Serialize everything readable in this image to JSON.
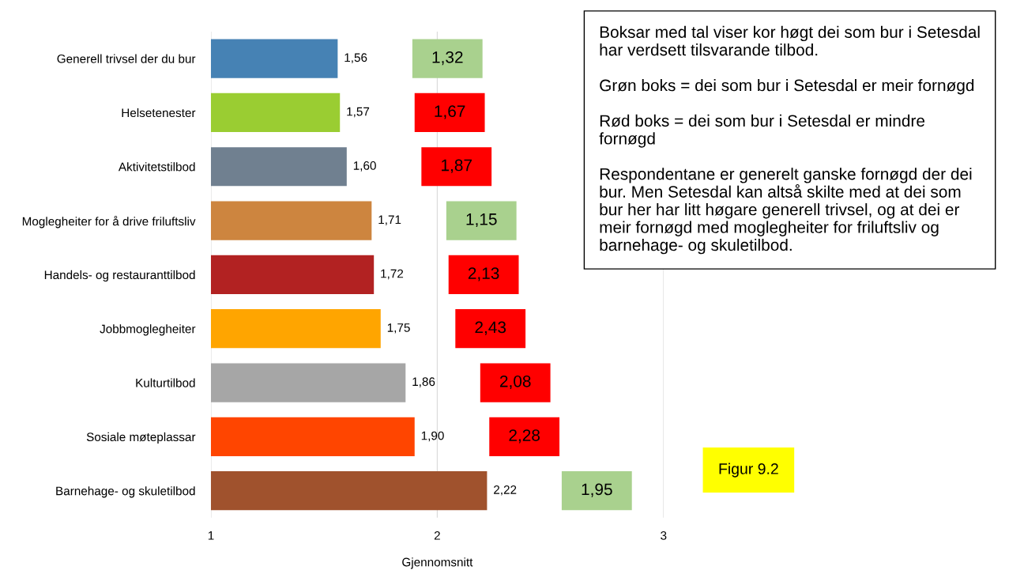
{
  "chart_data": {
    "type": "bar",
    "orientation": "horizontal",
    "xlabel": "Gjennomsnitt",
    "categories": [
      "Generell trivsel der du bur",
      "Helsetenester",
      "Aktivitetstilbod",
      "Moglegheiter for å drive friluftsliv",
      "Handels- og restauranttilbod",
      "Jobbmoglegheiter",
      "Kulturtilbod",
      "Sosiale møteplassar",
      "Barnehage- og skuletilbod"
    ],
    "values": [
      1.56,
      1.57,
      1.6,
      1.71,
      1.72,
      1.75,
      1.86,
      1.9,
      2.22
    ],
    "value_labels": [
      "1,56",
      "1,57",
      "1,60",
      "1,71",
      "1,72",
      "1,75",
      "1,86",
      "1,90",
      "2,22"
    ],
    "colors": [
      "#4682b4",
      "#9acd32",
      "#708090",
      "#cd853f",
      "#b22222",
      "#ffa500",
      "#a6a6a6",
      "#ff4500",
      "#a0522d"
    ],
    "xlim": [
      1,
      3
    ],
    "xticks": [
      1,
      2,
      3
    ],
    "grid": "x",
    "annotations": [
      "1,32",
      "1,67",
      "1,87",
      "1,15",
      "2,13",
      "2,43",
      "2,08",
      "2,28",
      "1,95",
      "Boksar med tal viser kor høgt dei som bur i Setesdal har verdsett tilsvarande tilbod.\n\nGrøn boks = dei som bur i Setesdal er meir fornøgd\n\nRød boks = dei som bur i Setesdal er mindre fornøgd\n\nRespondentane er generelt ganske fornøgd der dei bur. Men Setesdal kan altså skilte med at dei som bur her har litt høgare generell trivsel, og at dei er meir fornøgd med moglegheiter for friluftsliv og barnehage- og skuletilbod.",
      "Figur 9.2"
    ]
  }
}
